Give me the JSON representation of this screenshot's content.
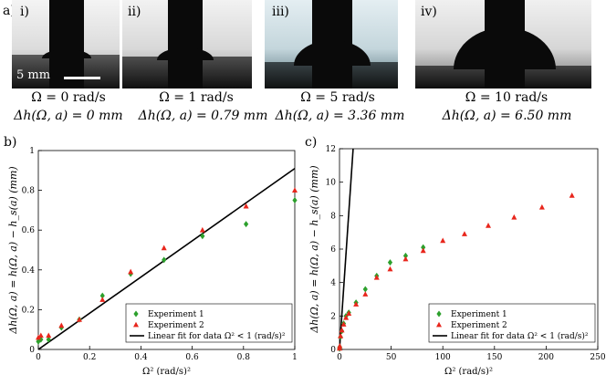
{
  "figure": {
    "panel_a": {
      "label": "a)",
      "scale_bar": "5 mm",
      "photos": [
        {
          "tag": "i)",
          "omega": "Ω = 0 rad/s",
          "dh": "Δh(Ω, a) = 0 mm"
        },
        {
          "tag": "ii)",
          "omega": "Ω = 1 rad/s",
          "dh": "Δh(Ω, a) = 0.79 mm"
        },
        {
          "tag": "iii)",
          "omega": "Ω = 5 rad/s",
          "dh": "Δh(Ω, a) = 3.36 mm"
        },
        {
          "tag": "iv)",
          "omega": "Ω = 10 rad/s",
          "dh": "Δh(Ω, a) = 6.50 mm"
        }
      ]
    },
    "colors": {
      "exp1": "#2ca02c",
      "exp2": "#e8261c",
      "fit": "#000000"
    }
  },
  "chart_data": [
    {
      "panel": "b)",
      "type": "scatter",
      "xlabel": "Ω² (rad/s)²",
      "ylabel": "Δh(Ω, a) = h(Ω, a) − h_s(a) (mm)",
      "xlim": [
        0,
        1
      ],
      "ylim": [
        0,
        1
      ],
      "xticks": [
        "0",
        "0.2",
        "0.4",
        "0.6",
        "0.8",
        "1"
      ],
      "yticks": [
        "0",
        "0.2",
        "0.4",
        "0.6",
        "0.8",
        "1"
      ],
      "legend": [
        "Experiment 1",
        "Experiment 2",
        "Linear fit for data Ω² < 1 (rad/s)²"
      ],
      "legend_position": "bottom-right",
      "series": [
        {
          "name": "Experiment 1",
          "marker": "diamond",
          "x": [
            0.0,
            0.01,
            0.04,
            0.09,
            0.16,
            0.25,
            0.36,
            0.49,
            0.64,
            0.81,
            1.0
          ],
          "y": [
            0.04,
            0.05,
            0.05,
            0.11,
            0.15,
            0.27,
            0.38,
            0.45,
            0.57,
            0.63,
            0.75
          ]
        },
        {
          "name": "Experiment 2",
          "marker": "triangle",
          "x": [
            0.0,
            0.01,
            0.04,
            0.09,
            0.16,
            0.25,
            0.36,
            0.49,
            0.64,
            0.81,
            1.0
          ],
          "y": [
            0.06,
            0.07,
            0.07,
            0.12,
            0.15,
            0.25,
            0.39,
            0.51,
            0.6,
            0.72,
            0.8
          ]
        },
        {
          "name": "Linear fit for data Ω² < 1 (rad/s)²",
          "type": "line",
          "x": [
            0,
            1
          ],
          "y": [
            0,
            0.91
          ]
        }
      ]
    },
    {
      "panel": "c)",
      "type": "scatter",
      "xlabel": "Ω² (rad/s)²",
      "ylabel": "Δh(Ω, a) = h(Ω, a) − h_s(a) (mm)",
      "xlim": [
        0,
        250
      ],
      "ylim": [
        0,
        12
      ],
      "xticks": [
        "0",
        "50",
        "100",
        "150",
        "200",
        "250"
      ],
      "yticks": [
        "0",
        "2",
        "4",
        "6",
        "8",
        "10",
        "12"
      ],
      "legend": [
        "Experiment 1",
        "Experiment 2",
        "Linear fit for data Ω² < 1 (rad/s)²"
      ],
      "legend_position": "bottom-right",
      "series": [
        {
          "name": "Experiment 1",
          "marker": "diamond",
          "x": [
            0,
            0.25,
            1,
            2.25,
            4,
            6.25,
            9,
            16,
            25,
            36,
            49,
            64,
            81
          ],
          "y": [
            0.05,
            0.15,
            0.75,
            1.1,
            1.55,
            2.0,
            2.2,
            2.8,
            3.6,
            4.4,
            5.2,
            5.6,
            6.1
          ]
        },
        {
          "name": "Experiment 2",
          "marker": "triangle",
          "x": [
            0,
            0.25,
            1,
            2.25,
            4,
            6.25,
            9,
            16,
            25,
            36,
            49,
            64,
            81,
            100,
            121,
            144,
            169,
            196,
            225
          ],
          "y": [
            0.06,
            0.2,
            0.8,
            1.15,
            1.5,
            1.9,
            2.15,
            2.7,
            3.3,
            4.3,
            4.8,
            5.4,
            5.9,
            6.5,
            6.9,
            7.4,
            7.9,
            8.5,
            9.2
          ]
        },
        {
          "name": "Linear fit for data Ω² < 1 (rad/s)²",
          "type": "line",
          "x": [
            0,
            13.19
          ],
          "y": [
            0,
            12
          ]
        }
      ]
    }
  ]
}
